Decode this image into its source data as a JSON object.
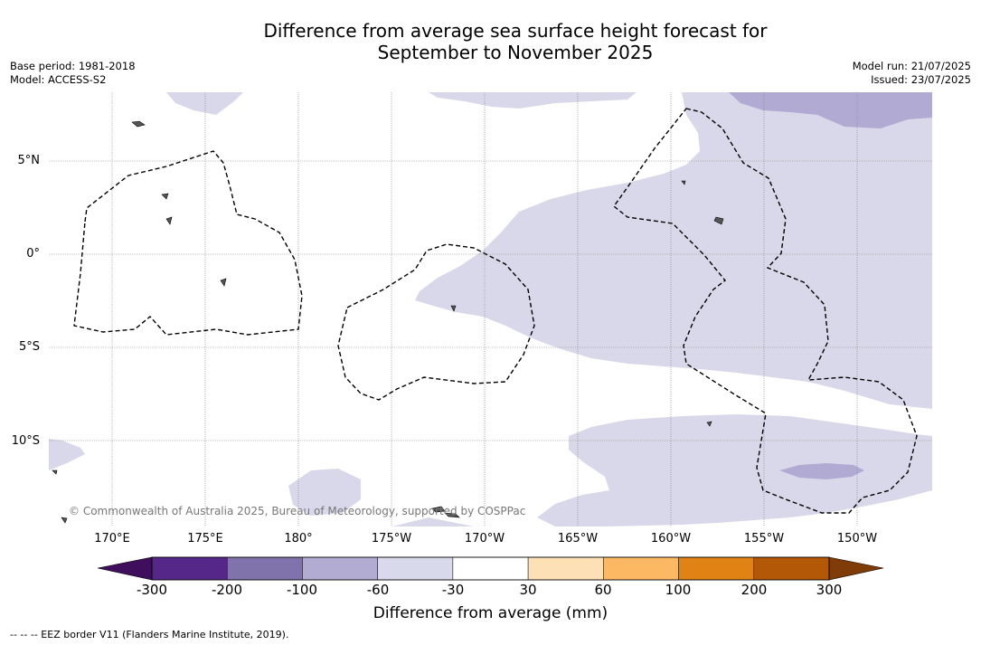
{
  "title": {
    "line1": "Difference from average sea surface height forecast for",
    "line2": "September to November 2025"
  },
  "meta_left": {
    "base_period": "Base period: 1981-2018",
    "model": "Model: ACCESS-S2"
  },
  "meta_right": {
    "model_run": "Model run: 21/07/2025",
    "issued": "Issued: 23/07/2025"
  },
  "map": {
    "lat_labels": [
      "5°N",
      "0°",
      "5°S",
      "10°S"
    ],
    "lon_labels": [
      "170°E",
      "175°E",
      "180°",
      "175°W",
      "170°W",
      "165°W",
      "160°W",
      "155°W",
      "150°W"
    ],
    "copyright": "© Commonwealth of Australia 2025, Bureau of Meteorology, supported by COSPPac",
    "colors": {
      "minus60_to_minus30": "#d8d8ea",
      "minus100_to_minus60": "#b1aad2",
      "ocean_neutral": "#ffffff",
      "eez_border": "#000000",
      "gridline": "#888888"
    }
  },
  "colorbar": {
    "title": "Difference from average (mm)",
    "ticks": [
      "-300",
      "-200",
      "-100",
      "-60",
      "-30",
      "30",
      "60",
      "100",
      "200",
      "300"
    ],
    "under_color": "#3f0f5e",
    "over_color": "#7f3b08",
    "colors": [
      "#542788",
      "#8073ac",
      "#b2abd2",
      "#d8daeb",
      "#ffffff",
      "#fee0b6",
      "#fdb863",
      "#e08214",
      "#b35806"
    ]
  },
  "footnote": "--  --  -- EEZ border V11 (Flanders Marine Institute, 2019)."
}
